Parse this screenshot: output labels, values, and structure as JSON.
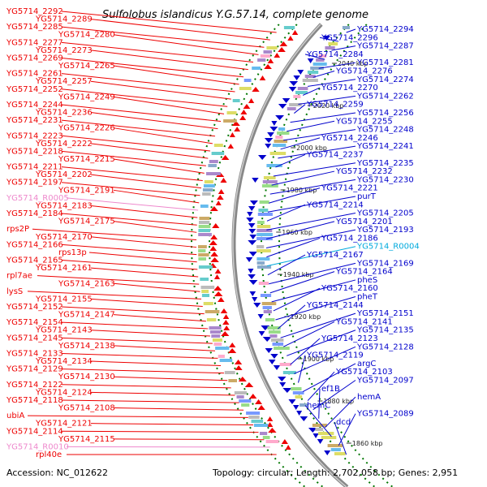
{
  "title": "Sulfolobus islandicus Y.G.57.14, complete genome",
  "accession": "Accession: NC_012622",
  "topology": "Topology: circular; Length: 2,702,058 bp; Genes: 2,951",
  "colors": {
    "forward": "#ee0000",
    "reverse": "#0000cc",
    "rna_pink": "#ee88cc",
    "rna_cyan": "#00aadd",
    "backbone": "#888888",
    "tick": "#007700"
  },
  "kbp_markers": [
    {
      "label": "2040 kbp"
    },
    {
      "label": "2020 kbp"
    },
    {
      "label": "2000 kbp"
    },
    {
      "label": "1980 kbp"
    },
    {
      "label": "1960 kbp"
    },
    {
      "label": "1940 kbp"
    },
    {
      "label": "1920 kbp"
    },
    {
      "label": "1900 kbp"
    },
    {
      "label": "1880 kbp"
    },
    {
      "label": "1860 kbp"
    }
  ],
  "left_labels": [
    {
      "text": "YG5714_2292",
      "c": "fwd"
    },
    {
      "text": "YG5714_2289",
      "c": "fwd"
    },
    {
      "text": "YG5714_2285",
      "c": "fwd"
    },
    {
      "text": "YG5714_2280",
      "c": "fwd"
    },
    {
      "text": "YG5714_2277",
      "c": "fwd"
    },
    {
      "text": "YG5714_2273",
      "c": "fwd"
    },
    {
      "text": "YG5714_2269",
      "c": "fwd"
    },
    {
      "text": "YG5714_2265",
      "c": "fwd"
    },
    {
      "text": "YG5714_2261",
      "c": "fwd"
    },
    {
      "text": "YG5714_2257",
      "c": "fwd"
    },
    {
      "text": "YG5714_2252",
      "c": "fwd"
    },
    {
      "text": "YG5714_2249",
      "c": "fwd"
    },
    {
      "text": "YG5714_2244",
      "c": "fwd"
    },
    {
      "text": "YG5714_2236",
      "c": "fwd"
    },
    {
      "text": "YG5714_2231",
      "c": "fwd"
    },
    {
      "text": "YG5714_2226",
      "c": "fwd"
    },
    {
      "text": "YG5714_2223",
      "c": "fwd"
    },
    {
      "text": "YG5714_2222",
      "c": "fwd"
    },
    {
      "text": "YG5714_2218",
      "c": "fwd"
    },
    {
      "text": "YG5714_2215",
      "c": "fwd"
    },
    {
      "text": "YG5714_2211",
      "c": "fwd"
    },
    {
      "text": "YG5714_2202",
      "c": "fwd"
    },
    {
      "text": "YG5714_2197",
      "c": "fwd"
    },
    {
      "text": "YG5714_2191",
      "c": "fwd"
    },
    {
      "text": "YG5714_R0005",
      "c": "pink"
    },
    {
      "text": "YG5714_2183",
      "c": "fwd"
    },
    {
      "text": "YG5714_2184",
      "c": "fwd"
    },
    {
      "text": "YG5714_2175",
      "c": "fwd"
    },
    {
      "text": "rps2P",
      "c": "fwd"
    },
    {
      "text": "YG5714_2170",
      "c": "fwd"
    },
    {
      "text": "YG5714_2166",
      "c": "fwd"
    },
    {
      "text": "rps13p",
      "c": "fwd"
    },
    {
      "text": "YG5714_2165",
      "c": "fwd"
    },
    {
      "text": "YG5714_2161",
      "c": "fwd"
    },
    {
      "text": "rpl7ae",
      "c": "fwd"
    },
    {
      "text": "YG5714_2163",
      "c": "fwd"
    },
    {
      "text": "lysS",
      "c": "fwd"
    },
    {
      "text": "YG5714_2155",
      "c": "fwd"
    },
    {
      "text": "YG5714_2152",
      "c": "fwd"
    },
    {
      "text": "YG5714_2147",
      "c": "fwd"
    },
    {
      "text": "YG5714_2154",
      "c": "fwd"
    },
    {
      "text": "YG5714_2143",
      "c": "fwd"
    },
    {
      "text": "YG5714_2145",
      "c": "fwd"
    },
    {
      "text": "YG5714_2138",
      "c": "fwd"
    },
    {
      "text": "YG5714_2133",
      "c": "fwd"
    },
    {
      "text": "YG5714_2134",
      "c": "fwd"
    },
    {
      "text": "YG5714_2129",
      "c": "fwd"
    },
    {
      "text": "YG5714_2130",
      "c": "fwd"
    },
    {
      "text": "YG5714_2122",
      "c": "fwd"
    },
    {
      "text": "YG5714_2124",
      "c": "fwd"
    },
    {
      "text": "YG5714_2118",
      "c": "fwd"
    },
    {
      "text": "YG5714_2108",
      "c": "fwd"
    },
    {
      "text": "ubiA",
      "c": "fwd"
    },
    {
      "text": "YG5714_2121",
      "c": "fwd"
    },
    {
      "text": "YG5714_2114",
      "c": "fwd"
    },
    {
      "text": "YG5714_2115",
      "c": "fwd"
    },
    {
      "text": "YG5714_R0010",
      "c": "pink"
    },
    {
      "text": "rpl40e",
      "c": "fwd"
    }
  ],
  "right_labels": [
    {
      "text": "YG5714_2294",
      "c": "rev"
    },
    {
      "text": "YG5714_2296",
      "c": "rev"
    },
    {
      "text": "YG5714_2287",
      "c": "rev"
    },
    {
      "text": "YG5714_2284",
      "c": "rev"
    },
    {
      "text": "YG5714_2281",
      "c": "rev"
    },
    {
      "text": "YG5714_2276",
      "c": "rev"
    },
    {
      "text": "YG5714_2274",
      "c": "rev"
    },
    {
      "text": "YG5714_2270",
      "c": "rev"
    },
    {
      "text": "YG5714_2262",
      "c": "rev"
    },
    {
      "text": "YG5714_2259",
      "c": "rev"
    },
    {
      "text": "YG5714_2256",
      "c": "rev"
    },
    {
      "text": "YG5714_2255",
      "c": "rev"
    },
    {
      "text": "YG5714_2248",
      "c": "rev"
    },
    {
      "text": "YG5714_2246",
      "c": "rev"
    },
    {
      "text": "YG5714_2241",
      "c": "rev"
    },
    {
      "text": "YG5714_2237",
      "c": "rev"
    },
    {
      "text": "YG5714_2235",
      "c": "rev"
    },
    {
      "text": "YG5714_2232",
      "c": "rev"
    },
    {
      "text": "YG5714_2230",
      "c": "rev"
    },
    {
      "text": "YG5714_2221",
      "c": "rev"
    },
    {
      "text": "purT",
      "c": "rev"
    },
    {
      "text": "YG5714_2214",
      "c": "rev"
    },
    {
      "text": "YG5714_2205",
      "c": "rev"
    },
    {
      "text": "YG5714_2201",
      "c": "rev"
    },
    {
      "text": "YG5714_2193",
      "c": "rev"
    },
    {
      "text": "YG5714_2186",
      "c": "rev"
    },
    {
      "text": "YG5714_R0004",
      "c": "cyan"
    },
    {
      "text": "YG5714_2167",
      "c": "rev"
    },
    {
      "text": "YG5714_2169",
      "c": "rev"
    },
    {
      "text": "YG5714_2164",
      "c": "rev"
    },
    {
      "text": "pheS",
      "c": "rev"
    },
    {
      "text": "YG5714_2160",
      "c": "rev"
    },
    {
      "text": "pheT",
      "c": "rev"
    },
    {
      "text": "YG5714_2144",
      "c": "rev"
    },
    {
      "text": "YG5714_2151",
      "c": "rev"
    },
    {
      "text": "YG5714_2141",
      "c": "rev"
    },
    {
      "text": "YG5714_2135",
      "c": "rev"
    },
    {
      "text": "YG5714_2123",
      "c": "rev"
    },
    {
      "text": "YG5714_2128",
      "c": "rev"
    },
    {
      "text": "YG5714_2119",
      "c": "rev"
    },
    {
      "text": "argC",
      "c": "rev"
    },
    {
      "text": "YG5714_2103",
      "c": "rev"
    },
    {
      "text": "YG5714_2097",
      "c": "rev"
    },
    {
      "text": "ef1B",
      "c": "rev"
    },
    {
      "text": "hemA",
      "c": "rev"
    },
    {
      "text": "hemC",
      "c": "rev"
    },
    {
      "text": "YG5714_2089",
      "c": "rev"
    },
    {
      "text": "dcd",
      "c": "rev"
    }
  ]
}
